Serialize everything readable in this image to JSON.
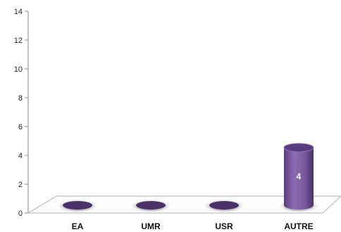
{
  "chart_data": {
    "type": "bar",
    "style": "3d-cylinder",
    "categories": [
      "EA",
      "UMR",
      "USR",
      "AUTRE"
    ],
    "values": [
      0,
      0,
      0,
      4
    ],
    "data_labels": [
      "",
      "",
      "",
      "4"
    ],
    "ylim": [
      0,
      14
    ],
    "y_ticks": [
      0,
      2,
      4,
      6,
      8,
      10,
      12,
      14
    ],
    "title": "",
    "xlabel": "",
    "ylabel": "",
    "grid": false,
    "legend": false,
    "bar_color": "#7a5a9c",
    "bar_top_color": "#5a3d80",
    "bar_dark_color": "#4a3268"
  }
}
